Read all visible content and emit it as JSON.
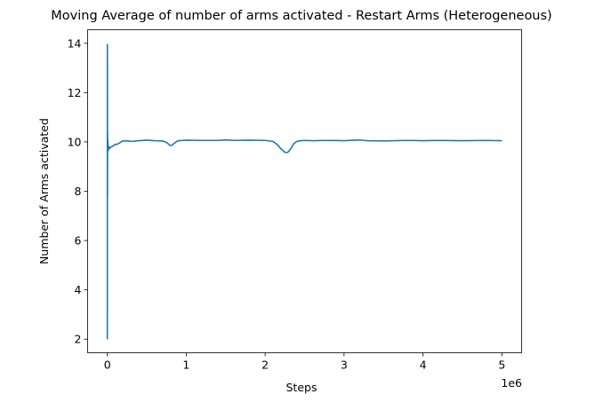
{
  "chart_data": {
    "type": "line",
    "title": "Moving Average of number of arms activated - Restart Arms (Heterogeneous)",
    "xlabel": "Steps",
    "ylabel": "Number of Arms activated",
    "x_offset_label": "1e6",
    "xlim": [
      -0.25,
      5.25
    ],
    "ylim": [
      1.45,
      14.55
    ],
    "x_scale_note": "x values in units of 1e6 steps",
    "x_ticks": [
      0,
      1,
      2,
      3,
      4,
      5
    ],
    "x_tick_labels": [
      "0",
      "1",
      "2",
      "3",
      "4",
      "5"
    ],
    "y_ticks": [
      2,
      4,
      6,
      8,
      10,
      12,
      14
    ],
    "y_tick_labels": [
      "2",
      "4",
      "6",
      "8",
      "10",
      "12",
      "14"
    ],
    "grid": false,
    "legend": false,
    "series": [
      {
        "color": "#1f77b4",
        "x": [
          0,
          0.0005,
          0.001,
          0.0015,
          0.002,
          0.003,
          0.004,
          0.005,
          0.006,
          0.008,
          0.01,
          0.015,
          0.02,
          0.025,
          0.03,
          0.05,
          0.08,
          0.1,
          0.12,
          0.15,
          0.2,
          0.22,
          0.25,
          0.3,
          0.4,
          0.5,
          0.6,
          0.7,
          0.75,
          0.78,
          0.8,
          0.82,
          0.85,
          0.88,
          0.9,
          0.95,
          1.0,
          1.2,
          1.4,
          1.5,
          1.6,
          1.8,
          2.0,
          2.1,
          2.15,
          2.2,
          2.25,
          2.28,
          2.3,
          2.33,
          2.36,
          2.4,
          2.45,
          2.5,
          2.6,
          2.8,
          3.0,
          3.2,
          3.25,
          3.3,
          3.5,
          3.8,
          4.0,
          4.2,
          4.5,
          4.8,
          5.0
        ],
        "y": [
          2.0,
          13.95,
          9.5,
          13.2,
          7.8,
          10.3,
          9.6,
          10.1,
          9.7,
          10.0,
          9.65,
          9.75,
          9.7,
          9.8,
          9.75,
          9.8,
          9.85,
          9.9,
          9.9,
          9.95,
          10.05,
          10.03,
          10.05,
          10.02,
          10.05,
          10.07,
          10.05,
          10.04,
          9.98,
          9.9,
          9.85,
          9.87,
          9.95,
          10.02,
          10.05,
          10.06,
          10.07,
          10.06,
          10.06,
          10.08,
          10.06,
          10.07,
          10.06,
          10.02,
          9.9,
          9.72,
          9.58,
          9.57,
          9.62,
          9.75,
          9.92,
          10.02,
          10.05,
          10.06,
          10.05,
          10.06,
          10.05,
          10.08,
          10.06,
          10.05,
          10.04,
          10.06,
          10.05,
          10.06,
          10.05,
          10.06,
          10.05
        ]
      }
    ]
  }
}
